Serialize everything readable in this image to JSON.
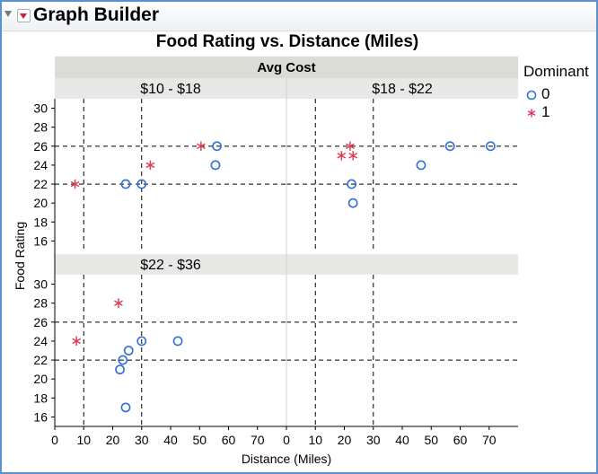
{
  "window": {
    "title": "Graph Builder"
  },
  "colors": {
    "series0": "#2f6fd6",
    "series1": "#d9405a",
    "refline": "#000000",
    "panel_header": "#e8e8e6",
    "group_header": "#dcdcd6"
  },
  "legend": {
    "title": "Dominant",
    "items": [
      "0",
      "1"
    ]
  },
  "chart_data": {
    "type": "scatter",
    "title": "Food Rating vs. Distance (Miles)",
    "xlabel": "Distance (Miles)",
    "ylabel": "Food Rating",
    "group_label": "Avg Cost",
    "xlim": [
      0,
      80
    ],
    "ylim": [
      15,
      31
    ],
    "x_ticks": [
      0,
      10,
      20,
      30,
      40,
      50,
      60,
      70
    ],
    "y_ticks": [
      16,
      18,
      20,
      22,
      24,
      26,
      28,
      30
    ],
    "reference_lines": {
      "x": [
        10,
        30
      ],
      "y": [
        22,
        26
      ]
    },
    "grid": false,
    "legend_position": "right",
    "panels": [
      {
        "label": "$10 - $18",
        "points": [
          {
            "x": 7,
            "y": 22,
            "g": 1
          },
          {
            "x": 24.5,
            "y": 22,
            "g": 0
          },
          {
            "x": 30,
            "y": 22,
            "g": 0
          },
          {
            "x": 33,
            "y": 24,
            "g": 1
          },
          {
            "x": 50.5,
            "y": 26,
            "g": 1
          },
          {
            "x": 55.5,
            "y": 24,
            "g": 0
          },
          {
            "x": 56,
            "y": 26,
            "g": 0
          }
        ]
      },
      {
        "label": "$18 - $22",
        "points": [
          {
            "x": 19,
            "y": 25,
            "g": 1
          },
          {
            "x": 22,
            "y": 26,
            "g": 1
          },
          {
            "x": 23,
            "y": 25,
            "g": 1
          },
          {
            "x": 22.5,
            "y": 22,
            "g": 0
          },
          {
            "x": 23,
            "y": 20,
            "g": 0
          },
          {
            "x": 46.5,
            "y": 24,
            "g": 0
          },
          {
            "x": 56.5,
            "y": 26,
            "g": 0
          },
          {
            "x": 70.5,
            "y": 26,
            "g": 0
          }
        ]
      },
      {
        "label": "$22 - $36",
        "points": [
          {
            "x": 7.5,
            "y": 24,
            "g": 1
          },
          {
            "x": 22,
            "y": 28,
            "g": 1
          },
          {
            "x": 22.5,
            "y": 21,
            "g": 0
          },
          {
            "x": 23.5,
            "y": 22,
            "g": 0
          },
          {
            "x": 25.5,
            "y": 23,
            "g": 0
          },
          {
            "x": 30,
            "y": 24,
            "g": 0
          },
          {
            "x": 42.5,
            "y": 24,
            "g": 0
          },
          {
            "x": 24.5,
            "y": 17,
            "g": 0
          }
        ]
      },
      {
        "label": "",
        "points": []
      }
    ]
  }
}
